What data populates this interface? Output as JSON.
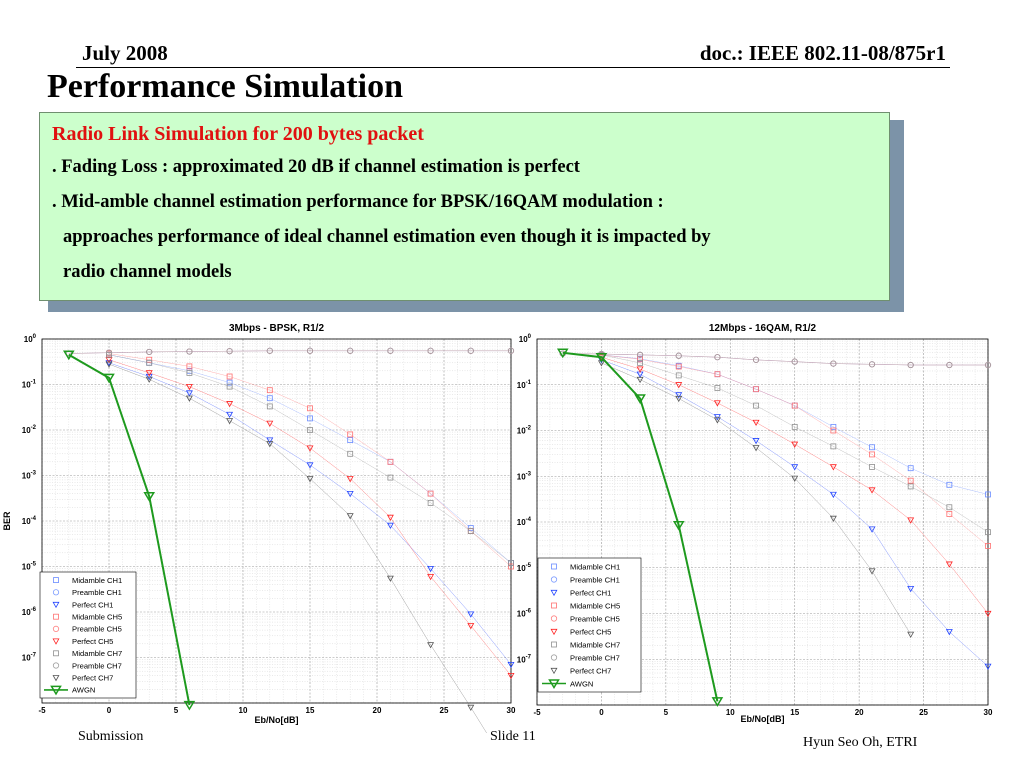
{
  "header": {
    "date": "July 2008",
    "doc": "doc.: IEEE 802.11-08/875r1"
  },
  "title": "Performance Simulation",
  "textbox": {
    "heading": "Radio Link Simulation for 200 bytes packet",
    "line1": ". Fading Loss : approximated 20 dB  if channel estimation is perfect",
    "line2": ". Mid-amble channel estimation performance for BPSK/16QAM modulation :",
    "line3": "approaches performance of ideal channel estimation even though it is impacted by",
    "line4": "radio channel models"
  },
  "footer": {
    "left": "Submission",
    "middle": "Slide 11",
    "right": "Hyun Seo Oh, ETRI"
  },
  "chart_data": [
    {
      "type": "line",
      "title": "3Mbps - BPSK, R1/2",
      "xlabel": "Eb/No[dB]",
      "ylabel": "BER",
      "yscale": "log",
      "xlim": [
        -5,
        30
      ],
      "ylim": [
        1e-08,
        1
      ],
      "x_ticks": [
        -5,
        0,
        5,
        10,
        15,
        20,
        25,
        30
      ],
      "y_ticks": [
        [
          "10",
          "0"
        ],
        [
          "10",
          "-1"
        ],
        [
          "10",
          "-2"
        ],
        [
          "10",
          "-3"
        ],
        [
          "10",
          "-4"
        ],
        [
          "10",
          "-5"
        ],
        [
          "10",
          "-6"
        ],
        [
          "10",
          "-7"
        ]
      ],
      "legend_position": "bottom-left",
      "series": [
        {
          "name": "Midamble CH1",
          "marker": "square",
          "color": "#6a8cff",
          "x": [
            0,
            3,
            6,
            9,
            12,
            15,
            18,
            21,
            24,
            27,
            30
          ],
          "y": [
            0.45,
            0.3,
            0.2,
            0.11,
            0.05,
            0.018,
            0.006,
            0.002,
            0.0004,
            7e-05,
            1.2e-05
          ]
        },
        {
          "name": "Preamble CH1",
          "marker": "circle",
          "color": "#7b9bff",
          "x": [
            -3,
            0,
            3,
            6,
            9,
            12,
            15,
            18,
            21,
            24,
            27,
            30
          ],
          "y": [
            0.48,
            0.5,
            0.52,
            0.53,
            0.54,
            0.55,
            0.55,
            0.55,
            0.55,
            0.55,
            0.55,
            0.55
          ]
        },
        {
          "name": "Perfect CH1",
          "marker": "tri",
          "color": "#2244ff",
          "x": [
            0,
            3,
            6,
            9,
            12,
            15,
            18,
            21,
            24,
            27,
            30
          ],
          "y": [
            0.3,
            0.15,
            0.065,
            0.022,
            0.006,
            0.0017,
            0.0004,
            8e-05,
            9e-06,
            9e-07,
            7e-08
          ]
        },
        {
          "name": "Midamble CH5",
          "marker": "square",
          "color": "#ff7070",
          "x": [
            0,
            3,
            6,
            9,
            12,
            15,
            18,
            21,
            24,
            27,
            30
          ],
          "y": [
            0.48,
            0.35,
            0.25,
            0.15,
            0.075,
            0.03,
            0.008,
            0.002,
            0.0004,
            6e-05,
            1e-05
          ]
        },
        {
          "name": "Preamble CH5",
          "marker": "circle",
          "color": "#ff8080",
          "x": [
            -3,
            0,
            3,
            6,
            9,
            12,
            15,
            18,
            21,
            24,
            27,
            30
          ],
          "y": [
            0.48,
            0.5,
            0.52,
            0.53,
            0.54,
            0.55,
            0.55,
            0.55,
            0.55,
            0.55,
            0.55,
            0.55
          ]
        },
        {
          "name": "Perfect CH5",
          "marker": "tri",
          "color": "#ff2020",
          "x": [
            0,
            3,
            6,
            9,
            12,
            15,
            18,
            21,
            24,
            27,
            30
          ],
          "y": [
            0.35,
            0.18,
            0.09,
            0.038,
            0.014,
            0.004,
            0.00085,
            0.00012,
            6e-06,
            5e-07,
            4e-08
          ]
        },
        {
          "name": "Midamble CH7",
          "marker": "square",
          "color": "#909090",
          "x": [
            0,
            3,
            6,
            9,
            12,
            15,
            18,
            21,
            24,
            27,
            30
          ],
          "y": [
            0.45,
            0.3,
            0.18,
            0.09,
            0.033,
            0.01,
            0.003,
            0.0009,
            0.00025,
            6e-05,
            1.2e-05
          ]
        },
        {
          "name": "Preamble CH7",
          "marker": "circle",
          "color": "#a0a0a0",
          "x": [
            -3,
            0,
            3,
            6,
            9,
            12,
            15,
            18,
            21,
            24,
            27,
            30
          ],
          "y": [
            0.48,
            0.5,
            0.52,
            0.53,
            0.54,
            0.55,
            0.55,
            0.55,
            0.55,
            0.55,
            0.55,
            0.55
          ]
        },
        {
          "name": "Perfect CH7",
          "marker": "tri",
          "color": "#555555",
          "x": [
            0,
            3,
            6,
            9,
            12,
            15,
            18,
            21,
            24,
            27,
            30
          ],
          "y": [
            0.28,
            0.13,
            0.05,
            0.016,
            0.005,
            0.00085,
            0.00013,
            5.5e-06,
            1.9e-07,
            8e-09,
            3e-10
          ]
        },
        {
          "name": "AWGN",
          "marker": "tri-big",
          "color": "#1e9a1e",
          "line": "#1e9a1e",
          "lw": 2,
          "x": [
            -3,
            0,
            3,
            6
          ],
          "y": [
            0.45,
            0.14,
            0.00035,
            9e-09
          ]
        }
      ]
    },
    {
      "type": "line",
      "title": "12Mbps - 16QAM, R1/2",
      "xlabel": "Eb/No[dB]",
      "ylabel": "",
      "yscale": "log",
      "xlim": [
        -5,
        30
      ],
      "ylim": [
        1e-08,
        1
      ],
      "x_ticks": [
        -5,
        0,
        5,
        10,
        15,
        20,
        25,
        30
      ],
      "y_ticks": [
        [
          "10",
          "0"
        ],
        [
          "10",
          "-1"
        ],
        [
          "10",
          "-2"
        ],
        [
          "10",
          "-3"
        ],
        [
          "10",
          "-4"
        ],
        [
          "10",
          "-5"
        ],
        [
          "10",
          "-6"
        ],
        [
          "10",
          "-7"
        ]
      ],
      "legend_position": "bottom-left",
      "series": [
        {
          "name": "Midamble CH1",
          "marker": "square",
          "color": "#6a8cff",
          "x": [
            0,
            3,
            6,
            9,
            12,
            15,
            18,
            21,
            24,
            27,
            30
          ],
          "y": [
            0.45,
            0.37,
            0.26,
            0.17,
            0.08,
            0.035,
            0.012,
            0.0043,
            0.0015,
            0.00065,
            0.0004
          ]
        },
        {
          "name": "Preamble CH1",
          "marker": "circle",
          "color": "#7b9bff",
          "x": [
            -3,
            0,
            3,
            6,
            9,
            12,
            15,
            18,
            21,
            24,
            27,
            30
          ],
          "y": [
            0.48,
            0.47,
            0.45,
            0.43,
            0.4,
            0.35,
            0.32,
            0.29,
            0.28,
            0.27,
            0.27,
            0.27
          ]
        },
        {
          "name": "Perfect CH1",
          "marker": "tri",
          "color": "#2244ff",
          "x": [
            0,
            3,
            6,
            9,
            12,
            15,
            18,
            21,
            24,
            27,
            30
          ],
          "y": [
            0.35,
            0.17,
            0.06,
            0.02,
            0.006,
            0.0016,
            0.0004,
            7e-05,
            3.5e-06,
            4e-07,
            7e-08
          ]
        },
        {
          "name": "Midamble CH5",
          "marker": "square",
          "color": "#ff7070",
          "x": [
            0,
            3,
            6,
            9,
            12,
            15,
            18,
            21,
            24,
            27,
            30
          ],
          "y": [
            0.45,
            0.36,
            0.25,
            0.17,
            0.08,
            0.035,
            0.01,
            0.003,
            0.0008,
            0.00015,
            3e-05
          ]
        },
        {
          "name": "Preamble CH5",
          "marker": "circle",
          "color": "#ff8080",
          "x": [
            -3,
            0,
            3,
            6,
            9,
            12,
            15,
            18,
            21,
            24,
            27,
            30
          ],
          "y": [
            0.48,
            0.47,
            0.45,
            0.43,
            0.4,
            0.35,
            0.32,
            0.29,
            0.28,
            0.27,
            0.27,
            0.27
          ]
        },
        {
          "name": "Perfect CH5",
          "marker": "tri",
          "color": "#ff2020",
          "x": [
            0,
            3,
            6,
            9,
            12,
            15,
            18,
            21,
            24,
            27,
            30
          ],
          "y": [
            0.4,
            0.22,
            0.1,
            0.04,
            0.015,
            0.005,
            0.0016,
            0.0005,
            0.00011,
            1.2e-05,
            1e-06
          ]
        },
        {
          "name": "Midamble CH7",
          "marker": "square",
          "color": "#909090",
          "x": [
            0,
            3,
            6,
            9,
            12,
            15,
            18,
            21,
            24,
            27,
            30
          ],
          "y": [
            0.45,
            0.3,
            0.16,
            0.085,
            0.035,
            0.012,
            0.0045,
            0.0016,
            0.0006,
            0.00021,
            6e-05
          ]
        },
        {
          "name": "Preamble CH7",
          "marker": "circle",
          "color": "#a0a0a0",
          "x": [
            -3,
            0,
            3,
            6,
            9,
            12,
            15,
            18,
            21,
            24,
            27,
            30
          ],
          "y": [
            0.48,
            0.47,
            0.45,
            0.43,
            0.4,
            0.35,
            0.32,
            0.29,
            0.28,
            0.27,
            0.27,
            0.27
          ]
        },
        {
          "name": "Perfect CH7",
          "marker": "tri",
          "color": "#555555",
          "x": [
            0,
            3,
            6,
            9,
            12,
            15,
            18,
            21,
            24
          ],
          "y": [
            0.3,
            0.13,
            0.05,
            0.017,
            0.0042,
            0.0009,
            0.00012,
            8.5e-06,
            3.5e-07
          ]
        },
        {
          "name": "AWGN",
          "marker": "tri-big",
          "color": "#1e9a1e",
          "line": "#1e9a1e",
          "lw": 2,
          "x": [
            -3,
            0,
            3,
            6,
            9
          ],
          "y": [
            0.5,
            0.4,
            0.05,
            8.5e-05,
            1.2e-08
          ]
        }
      ]
    }
  ]
}
